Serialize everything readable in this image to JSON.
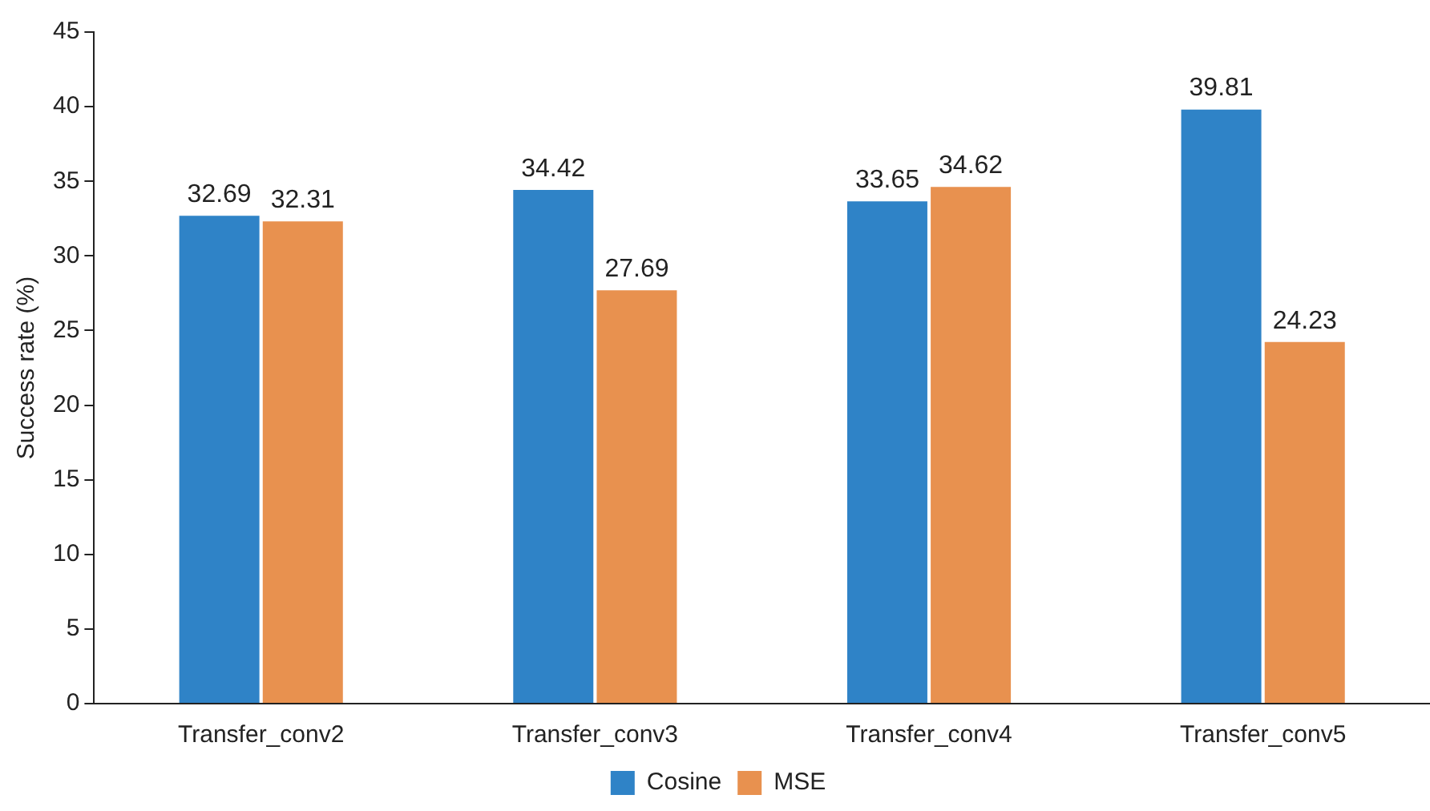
{
  "chart_data": {
    "type": "bar",
    "ylabel": "Success rate (%)",
    "categories": [
      "Transfer_conv2",
      "Transfer_conv3",
      "Transfer_conv4",
      "Transfer_conv5"
    ],
    "series": [
      {
        "name": "Cosine",
        "color": "#2f83c7",
        "values": [
          32.69,
          34.42,
          33.65,
          39.81
        ]
      },
      {
        "name": "MSE",
        "color": "#e8914f",
        "values": [
          32.31,
          27.69,
          34.62,
          24.23
        ]
      }
    ],
    "ylim": [
      0,
      45
    ],
    "yticks": [
      0,
      5,
      10,
      15,
      20,
      25,
      30,
      35,
      40,
      45
    ],
    "grid": false,
    "legend": "bottom",
    "data_labels": true
  }
}
